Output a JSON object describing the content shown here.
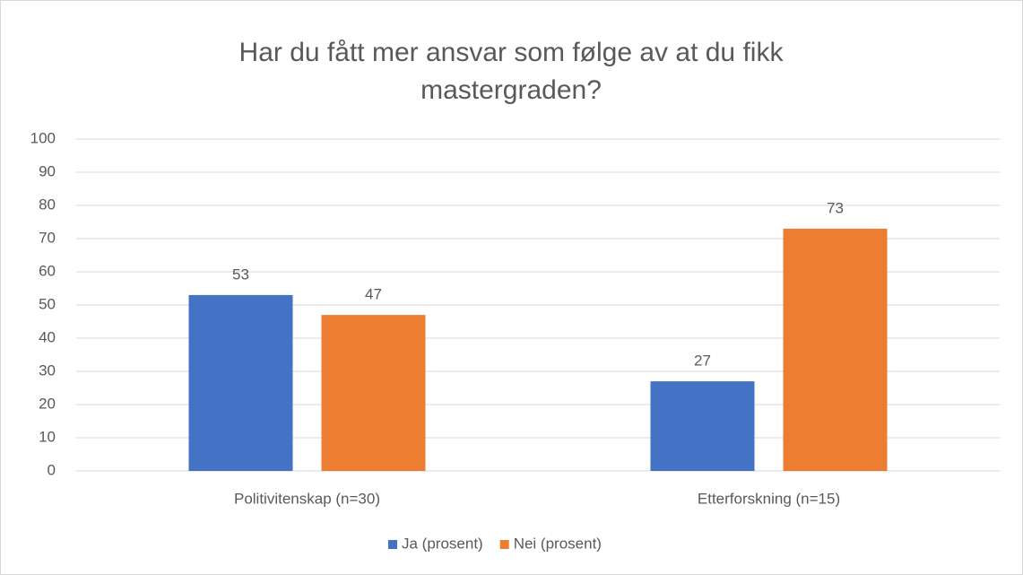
{
  "chart_data": {
    "type": "bar",
    "title": "Har du fått mer ansvar  som følge av at du fikk mastergraden?",
    "categories": [
      "Politivitenskap (n=30)",
      "Etterforskning (n=15)"
    ],
    "series": [
      {
        "name": "Ja (prosent)",
        "color": "#4472c4",
        "values": [
          53,
          27
        ]
      },
      {
        "name": "Nei (prosent)",
        "color": "#ed7d31",
        "values": [
          47,
          73
        ]
      }
    ],
    "ylim": [
      0,
      100
    ],
    "yticks": [
      0,
      10,
      20,
      30,
      40,
      50,
      60,
      70,
      80,
      90,
      100
    ],
    "grid": true,
    "legend": "bottom"
  }
}
